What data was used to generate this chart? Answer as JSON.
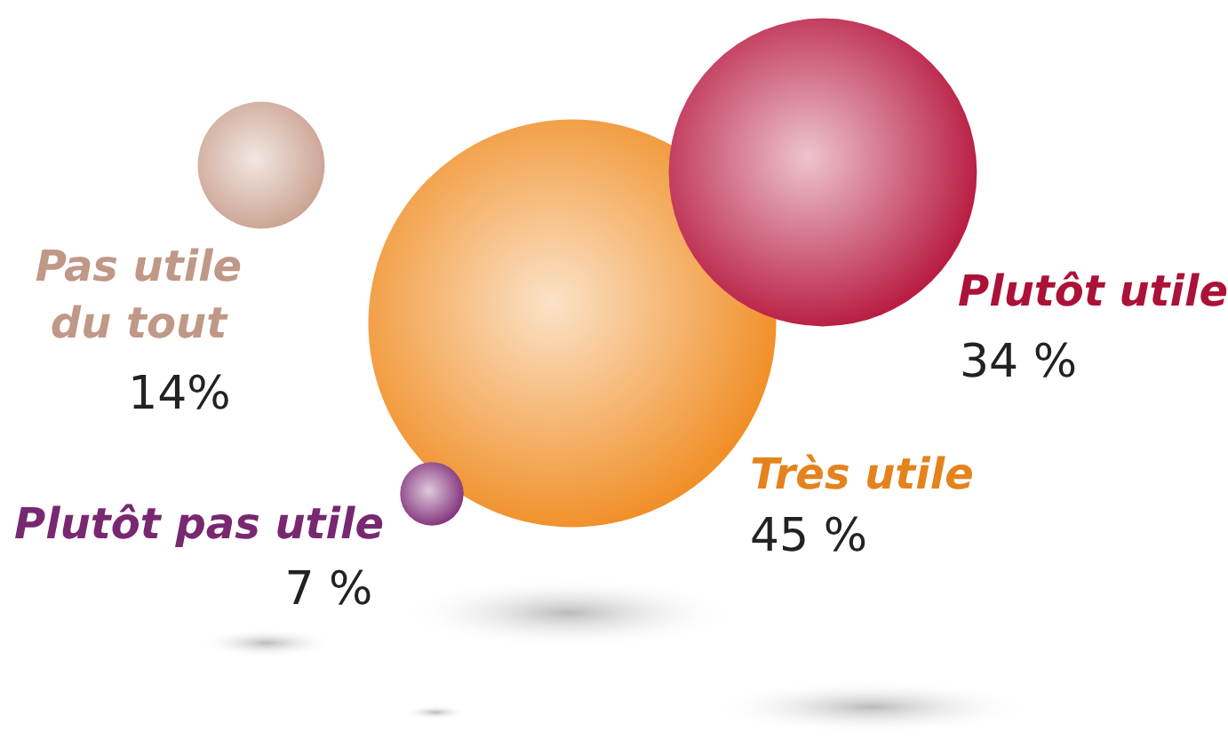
{
  "chart_data": {
    "type": "other",
    "categories": [
      "Très utile",
      "Plutôt utile",
      "Pas utile du tout",
      "Plutôt pas utile"
    ],
    "values": [
      45,
      34,
      14,
      7
    ],
    "value_labels": [
      "45 %",
      "34 %",
      "14%",
      "7 %"
    ],
    "colors": [
      "#f08a1e",
      "#b5123a",
      "#c9a08e",
      "#7e2a77"
    ]
  }
}
